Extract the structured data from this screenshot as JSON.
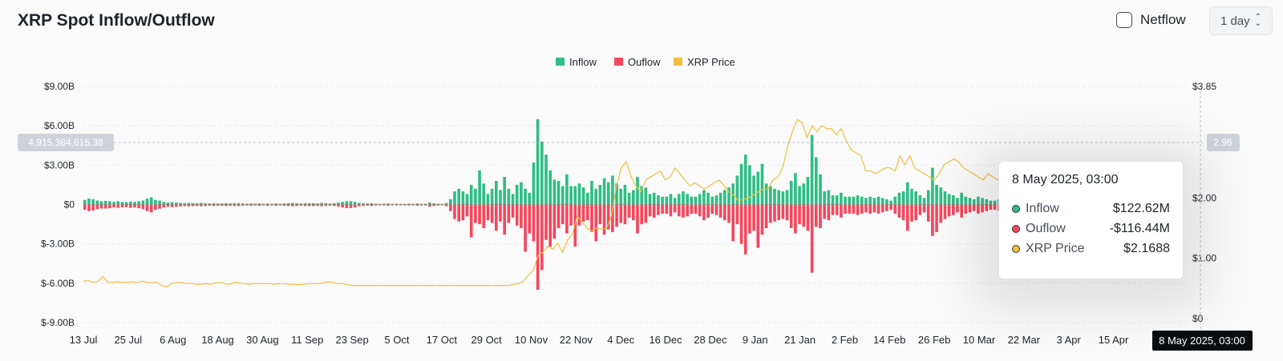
{
  "header": {
    "title": "XRP Spot Inflow/Outflow",
    "netflow_label": "Netflow",
    "period": "1 day"
  },
  "chart_data": {
    "type": "bar",
    "legend": [
      {
        "name": "Inflow",
        "color": "#2ebd85"
      },
      {
        "name": "Ouflow",
        "color": "#f6465d"
      },
      {
        "name": "XRP Price",
        "color": "#f0c040"
      }
    ],
    "x_ticks": [
      "13 Jul",
      "25 Jul",
      "6 Aug",
      "18 Aug",
      "30 Aug",
      "11 Sep",
      "23 Sep",
      "5 Oct",
      "17 Oct",
      "29 Oct",
      "10 Nov",
      "22 Nov",
      "4 Dec",
      "16 Dec",
      "28 Dec",
      "9 Jan",
      "21 Jan",
      "2 Feb",
      "14 Feb",
      "26 Feb",
      "10 Mar",
      "22 Mar",
      "3 Apr",
      "15 Apr"
    ],
    "y_left_ticks": [
      "$9.00B",
      "$6.00B",
      "$3.00B",
      "$0",
      "$-3.00B",
      "$-6.00B",
      "$-9.00B"
    ],
    "y_left_range": [
      -9,
      9
    ],
    "y_left_unit": "B USD",
    "y_right_ticks": [
      "$3.85",
      "$2.00",
      "$1.00",
      "$0"
    ],
    "y_right_range": [
      0,
      3.85
    ],
    "crosshair": {
      "left_value": "4,915,384,615.38",
      "right_value": "2.96",
      "x_label": "8 May 2025, 03:00"
    },
    "inflow": [
      0.35,
      0.45,
      0.4,
      0.3,
      0.25,
      0.28,
      0.25,
      0.2,
      0.25,
      0.2,
      0.18,
      0.22,
      0.2,
      0.25,
      0.3,
      0.45,
      0.55,
      0.35,
      0.3,
      0.2,
      0.15,
      0.18,
      0.15,
      0.12,
      0.1,
      0.12,
      0.1,
      0.1,
      0.12,
      0.1,
      0.08,
      0.1,
      0.08,
      0.08,
      0.1,
      0.08,
      0.1,
      0.1,
      0.08,
      0.06,
      0.08,
      0.06,
      0.08,
      0.06,
      0.08,
      0.06,
      0.08,
      0.06,
      0.08,
      0.1,
      0.12,
      0.1,
      0.08,
      0.1,
      0.1,
      0.1,
      0.08,
      0.12,
      0.1,
      0.08,
      0.1,
      0.15,
      0.2,
      0.25,
      0.25,
      0.2,
      0.12,
      0.1,
      0.08,
      0.1,
      0.06,
      0.05,
      0.06,
      0.08,
      0.05,
      0.06,
      0.05,
      0.05,
      0.06,
      0.05,
      0.08,
      0.06,
      0.06,
      0.15,
      0.1,
      0.06,
      0.05,
      0.12,
      0.4,
      1.0,
      1.2,
      1.0,
      0.8,
      1.5,
      1.2,
      2.6,
      1.6,
      0.8,
      1.2,
      1.8,
      1.1,
      2.1,
      1.2,
      0.8,
      1.5,
      1.7,
      1.2,
      0.9,
      3.2,
      6.5,
      4.8,
      3.8,
      2.6,
      1.9,
      1.8,
      1.4,
      2.3,
      1.4,
      1.4,
      1.6,
      1.3,
      0.9,
      1.8,
      1.2,
      1.5,
      2.0,
      1.7,
      2.2,
      1.6,
      1.2,
      1.5,
      0.9,
      1.1,
      2.1,
      1.4,
      1.3,
      0.8,
      0.9,
      0.7,
      0.6,
      0.6,
      0.8,
      0.5,
      0.8,
      1.0,
      0.8,
      0.6,
      0.6,
      0.8,
      1.1,
      0.9,
      0.6,
      0.7,
      0.9,
      1.1,
      1.3,
      1.6,
      2.2,
      3.1,
      3.8,
      3.0,
      2.2,
      2.5,
      3.1,
      1.6,
      1.4,
      1.2,
      1.1,
      1.0,
      1.1,
      1.8,
      2.4,
      1.4,
      1.6,
      2.1,
      5.3,
      3.6,
      2.3,
      1.0,
      1.1,
      0.7,
      0.7,
      0.9,
      0.6,
      0.6,
      0.6,
      0.7,
      0.6,
      0.5,
      0.6,
      0.5,
      0.6,
      0.5,
      0.4,
      0.3,
      0.6,
      0.9,
      1.0,
      1.7,
      1.2,
      1.0,
      0.7,
      0.5,
      1.1,
      2.8,
      1.5,
      1.3,
      1.0,
      0.8,
      0.7,
      0.5,
      0.9,
      0.6,
      0.5,
      0.4,
      0.6,
      0.5,
      0.4,
      0.3,
      0.3,
      0.4,
      0.4,
      0.3,
      0.3,
      0.3,
      0.3,
      0.3,
      0.3,
      0.3,
      0.3,
      0.3,
      0.3,
      0.3,
      0.3,
      0.3,
      0.3,
      0.3,
      0.3,
      0.3,
      0.3,
      0.3,
      0.3,
      0.3,
      0.3,
      0.3,
      0.3,
      0.3,
      0.3,
      0.3,
      0.3,
      0.3,
      0.3,
      0.3,
      0.3,
      0.3,
      0.3,
      0.3,
      0.3,
      0.3,
      0.3,
      0.35,
      0.3,
      0.3,
      0.25
    ],
    "outflow": [
      -0.4,
      -0.5,
      -0.45,
      -0.35,
      -0.3,
      -0.3,
      -0.28,
      -0.22,
      -0.25,
      -0.22,
      -0.2,
      -0.25,
      -0.22,
      -0.28,
      -0.35,
      -0.5,
      -0.6,
      -0.4,
      -0.32,
      -0.22,
      -0.17,
      -0.2,
      -0.17,
      -0.14,
      -0.12,
      -0.14,
      -0.12,
      -0.11,
      -0.13,
      -0.11,
      -0.09,
      -0.11,
      -0.09,
      -0.09,
      -0.11,
      -0.09,
      -0.11,
      -0.11,
      -0.09,
      -0.07,
      -0.09,
      -0.07,
      -0.09,
      -0.07,
      -0.09,
      -0.07,
      -0.09,
      -0.07,
      -0.09,
      -0.11,
      -0.13,
      -0.11,
      -0.09,
      -0.11,
      -0.11,
      -0.11,
      -0.09,
      -0.13,
      -0.11,
      -0.09,
      -0.11,
      -0.16,
      -0.22,
      -0.27,
      -0.27,
      -0.22,
      -0.13,
      -0.11,
      -0.09,
      -0.11,
      -0.07,
      -0.06,
      -0.07,
      -0.09,
      -0.06,
      -0.07,
      -0.06,
      -0.06,
      -0.07,
      -0.06,
      -0.09,
      -0.07,
      -0.07,
      -0.16,
      -0.11,
      -0.07,
      -0.06,
      -0.13,
      -0.5,
      -1.1,
      -1.3,
      -1.2,
      -0.9,
      -2.5,
      -1.4,
      -1.5,
      -1.8,
      -1.2,
      -1.4,
      -2.0,
      -1.3,
      -2.3,
      -1.4,
      -1.0,
      -1.6,
      -1.8,
      -3.6,
      -2.2,
      -2.8,
      -6.5,
      -5.0,
      -2.7,
      -3.2,
      -2.6,
      -1.8,
      -1.5,
      -2.2,
      -1.6,
      -3.2,
      -1.6,
      -1.3,
      -1.2,
      -2.1,
      -2.8,
      -1.5,
      -2.3,
      -1.9,
      -2.1,
      -1.7,
      -1.4,
      -1.5,
      -1.0,
      -1.2,
      -2.2,
      -1.5,
      -1.4,
      -0.9,
      -1.0,
      -0.8,
      -0.7,
      -0.7,
      -0.9,
      -0.6,
      -0.9,
      -1.0,
      -0.9,
      -0.7,
      -0.7,
      -0.9,
      -1.2,
      -1.0,
      -0.7,
      -0.8,
      -1.0,
      -1.2,
      -1.4,
      -2.8,
      -1.5,
      -3.0,
      -3.8,
      -2.2,
      -2.0,
      -3.3,
      -2.3,
      -1.8,
      -1.4,
      -1.3,
      -1.2,
      -1.1,
      -1.2,
      -1.8,
      -2.2,
      -1.5,
      -1.7,
      -2.0,
      -5.2,
      -1.7,
      -1.8,
      -1.1,
      -1.2,
      -0.8,
      -0.8,
      -1.0,
      -0.7,
      -0.7,
      -0.7,
      -0.8,
      -0.7,
      -0.6,
      -0.7,
      -0.6,
      -0.7,
      -0.6,
      -0.5,
      -0.4,
      -0.7,
      -1.0,
      -1.2,
      -2.0,
      -1.3,
      -1.2,
      -0.8,
      -0.6,
      -1.3,
      -2.4,
      -2.1,
      -1.4,
      -1.1,
      -0.9,
      -0.8,
      -0.6,
      -1.0,
      -0.7,
      -0.6,
      -0.5,
      -0.7,
      -0.6,
      -0.5,
      -0.4,
      -0.4,
      -0.5,
      -0.5,
      -0.4,
      -0.4,
      -0.4,
      -0.4,
      -0.4,
      -0.4,
      -0.4,
      -0.4,
      -0.4,
      -0.4,
      -0.4,
      -0.4,
      -0.4,
      -0.4,
      -0.4,
      -0.4,
      -0.4,
      -0.4,
      -0.4,
      -0.4,
      -0.4,
      -0.4,
      -0.4,
      -0.4,
      -0.4,
      -0.4,
      -0.4,
      -0.4,
      -0.4,
      -0.4,
      -0.4,
      -0.4,
      -0.4,
      -0.4,
      -0.4,
      -0.4,
      -0.4,
      -0.4,
      -0.45,
      -0.4,
      -0.4,
      -0.35
    ],
    "price": [
      0.62,
      0.63,
      0.6,
      0.62,
      0.7,
      0.6,
      0.6,
      0.61,
      0.6,
      0.6,
      0.61,
      0.6,
      0.62,
      0.6,
      0.6,
      0.6,
      0.55,
      0.52,
      0.58,
      0.6,
      0.6,
      0.58,
      0.59,
      0.57,
      0.57,
      0.58,
      0.57,
      0.59,
      0.6,
      0.58,
      0.57,
      0.6,
      0.59,
      0.58,
      0.57,
      0.58,
      0.58,
      0.58,
      0.58,
      0.57,
      0.58,
      0.58,
      0.57,
      0.57,
      0.56,
      0.57,
      0.58,
      0.58,
      0.58,
      0.59,
      0.61,
      0.6,
      0.58,
      0.58,
      0.56,
      0.55,
      0.55,
      0.55,
      0.55,
      0.55,
      0.55,
      0.55,
      0.55,
      0.55,
      0.55,
      0.55,
      0.55,
      0.55,
      0.55,
      0.55,
      0.55,
      0.55,
      0.55,
      0.55,
      0.55,
      0.55,
      0.55,
      0.55,
      0.55,
      0.55,
      0.55,
      0.55,
      0.55,
      0.55,
      0.55,
      0.55,
      0.55,
      0.55,
      0.57,
      0.58,
      0.62,
      0.72,
      0.8,
      1.05,
      1.1,
      1.2,
      1.15,
      1.25,
      1.1,
      1.3,
      1.4,
      1.7,
      1.6,
      1.5,
      1.45,
      1.5,
      1.48,
      1.5,
      1.7,
      2.2,
      2.5,
      2.6,
      2.35,
      2.2,
      2.1,
      2.3,
      2.35,
      2.4,
      2.45,
      2.3,
      2.35,
      2.5,
      2.4,
      2.3,
      2.2,
      2.25,
      2.2,
      2.15,
      2.2,
      2.25,
      2.3,
      2.2,
      2.1,
      2.05,
      1.95,
      1.98,
      2.0,
      2.05,
      2.1,
      2.15,
      2.15,
      2.3,
      2.35,
      2.5,
      2.85,
      3.1,
      3.3,
      3.25,
      3.0,
      3.2,
      3.1,
      3.2,
      3.15,
      3.15,
      3.05,
      3.15,
      2.95,
      2.8,
      2.75,
      2.7,
      2.45,
      2.45,
      2.4,
      2.45,
      2.5,
      2.5,
      2.45,
      2.7,
      2.55,
      2.7,
      2.5,
      2.45,
      2.4,
      2.35,
      2.3,
      2.4,
      2.55,
      2.6,
      2.65,
      2.6,
      2.5,
      2.45,
      2.4,
      2.35,
      2.3,
      2.4,
      2.35,
      2.3,
      2.35,
      2.3,
      2.4,
      2.2,
      2.3,
      2.25,
      2.3,
      2.3,
      2.35,
      2.3,
      2.4,
      2.45,
      2.4,
      2.5,
      2.45,
      2.4,
      2.38,
      2.4,
      2.35,
      2.3,
      2.25,
      2.2,
      2.1,
      2.2,
      2.2,
      2.25,
      2.2,
      2.2,
      2.15,
      2.1,
      2.2,
      2.2,
      2.2,
      2.15,
      2.1,
      2.2,
      2.17
    ],
    "tooltip": {
      "date": "8 May 2025, 03:00",
      "rows": [
        {
          "label": "Inflow",
          "value": "$122.62M",
          "color": "#2ebd85"
        },
        {
          "label": "Ouflow",
          "value": "-$116.44M",
          "color": "#f6465d"
        },
        {
          "label": "XRP Price",
          "value": "$2.1688",
          "color": "#f0c040"
        }
      ]
    }
  }
}
